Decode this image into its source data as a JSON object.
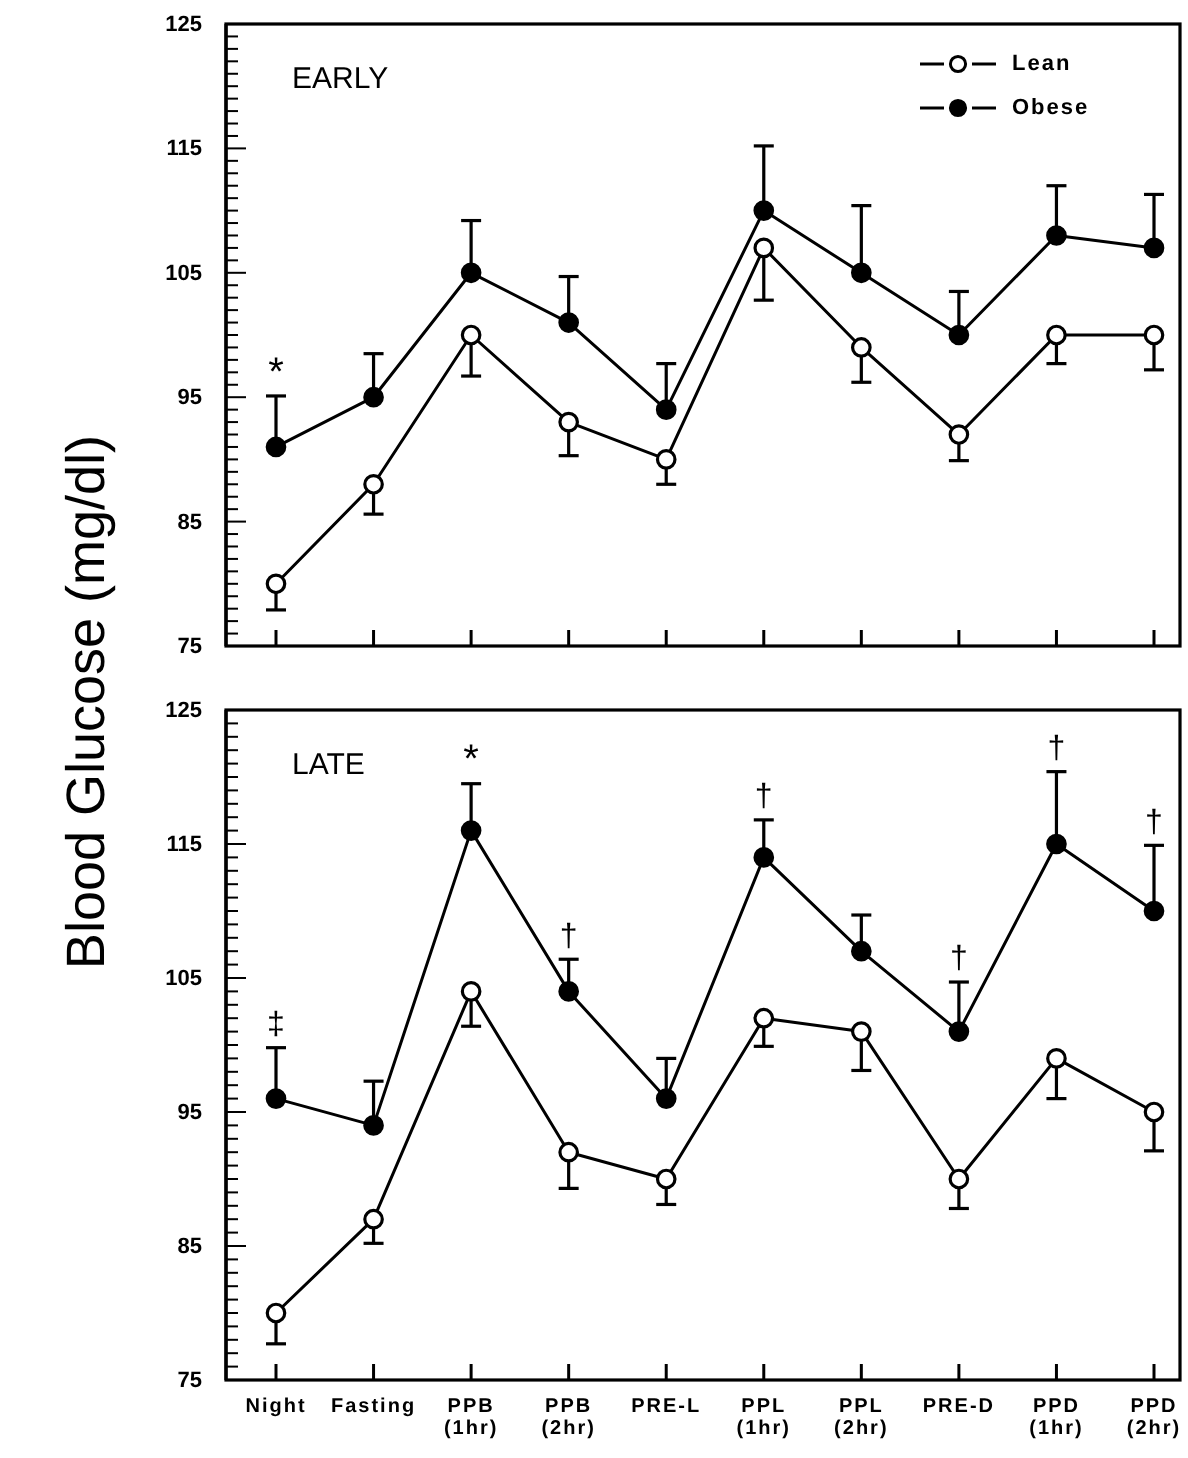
{
  "chart_data": [
    {
      "type": "line",
      "title": "EARLY",
      "ylabel": "Blood Glucose (mg/dl)",
      "categories": [
        "Night",
        "Fasting",
        "PPB (1hr)",
        "PPB (2hr)",
        "PRE-L",
        "PPL (1hr)",
        "PPL (2hr)",
        "PRE-D",
        "PPD (1hr)",
        "PPD (2hr)"
      ],
      "ylim": [
        75,
        125
      ],
      "yticks": [
        75,
        {
          "value": 76,
          "label": null
        },
        {
          "value": 77,
          "label": null
        },
        {
          "value": 78,
          "label": null
        },
        {
          "value": 79,
          "label": null
        },
        {
          "value": 80,
          "label": null
        },
        {
          "value": 81,
          "label": null
        },
        {
          "value": 82,
          "label": null
        },
        {
          "value": 83,
          "label": null
        },
        {
          "value": 84,
          "label": null
        },
        85,
        {
          "value": 86,
          "label": null
        },
        {
          "value": 87,
          "label": null
        },
        {
          "value": 88,
          "label": null
        },
        {
          "value": 89,
          "label": null
        },
        {
          "value": 90,
          "label": null
        },
        {
          "value": 91,
          "label": null
        },
        {
          "value": 92,
          "label": null
        },
        {
          "value": 93,
          "label": null
        },
        {
          "value": 94,
          "label": null
        },
        95,
        {
          "value": 96,
          "label": null
        },
        {
          "value": 97,
          "label": null
        },
        {
          "value": 98,
          "label": null
        },
        {
          "value": 99,
          "label": null
        },
        {
          "value": 100,
          "label": null
        },
        {
          "value": 101,
          "label": null
        },
        {
          "value": 102,
          "label": null
        },
        {
          "value": 103,
          "label": null
        },
        {
          "value": 104,
          "label": null
        },
        105,
        {
          "value": 106,
          "label": null
        },
        {
          "value": 107,
          "label": null
        },
        {
          "value": 108,
          "label": null
        },
        {
          "value": 109,
          "label": null
        },
        {
          "value": 110,
          "label": null
        },
        {
          "value": 111,
          "label": null
        },
        {
          "value": 112,
          "label": null
        },
        {
          "value": 113,
          "label": null
        },
        {
          "value": 114,
          "label": null
        },
        115,
        {
          "value": 116,
          "label": null
        },
        {
          "value": 117,
          "label": null
        },
        {
          "value": 118,
          "label": null
        },
        {
          "value": 119,
          "label": null
        },
        {
          "value": 120,
          "label": null
        },
        {
          "value": 121,
          "label": null
        },
        {
          "value": 122,
          "label": null
        },
        {
          "value": 123,
          "label": null
        },
        {
          "value": 124,
          "label": null
        },
        125
      ],
      "tick_labels": "y",
      "legend": "top right",
      "grid": false,
      "line_style": "solid",
      "series": [
        {
          "name": "Lean",
          "color": "#000000",
          "marker": "circle",
          "values": [
            80,
            88,
            100,
            93,
            90,
            107,
            99,
            92,
            100,
            100
          ],
          "errors": [
            [
              77.9,
              80
            ],
            [
              85.6,
              88
            ],
            [
              96.7,
              100
            ],
            [
              90.3,
              93
            ],
            [
              88,
              90
            ],
            [
              102.8,
              107
            ],
            [
              96.2,
              99
            ],
            [
              89.9,
              92
            ],
            [
              97.7,
              100
            ],
            [
              97.2,
              100
            ]
          ]
        },
        {
          "name": "Obese",
          "color": "#000000",
          "marker": "circle",
          "values": [
            91,
            95,
            105,
            101,
            94,
            110,
            105,
            100,
            108,
            107
          ],
          "errors": [
            [
              91,
              95.1
            ],
            [
              95,
              98.5
            ],
            [
              105,
              109.2
            ],
            [
              101,
              104.7
            ],
            [
              94,
              97.7
            ],
            [
              110,
              115.2
            ],
            [
              105,
              110.4
            ],
            [
              100,
              103.5
            ],
            [
              108,
              112
            ],
            [
              107,
              111.3
            ]
          ]
        }
      ],
      "annotations": [
        {
          "text": "*",
          "x": "Night",
          "y": 95.1
        }
      ]
    },
    {
      "type": "line",
      "title": "LATE",
      "categories": [
        "Night",
        "Fasting",
        "PPB (1hr)",
        "PPB (2hr)",
        "PRE-L",
        "PPL (1hr)",
        "PPL (2hr)",
        "PRE-D",
        "PPD (1hr)",
        "PPD (2hr)"
      ],
      "ylim": [
        75,
        125
      ],
      "yticks": [
        75,
        {
          "value": 76,
          "label": null
        },
        {
          "value": 77,
          "label": null
        },
        {
          "value": 78,
          "label": null
        },
        {
          "value": 79,
          "label": null
        },
        {
          "value": 80,
          "label": null
        },
        {
          "value": 81,
          "label": null
        },
        {
          "value": 82,
          "label": null
        },
        {
          "value": 83,
          "label": null
        },
        {
          "value": 84,
          "label": null
        },
        85,
        {
          "value": 86,
          "label": null
        },
        {
          "value": 87,
          "label": null
        },
        {
          "value": 88,
          "label": null
        },
        {
          "value": 89,
          "label": null
        },
        {
          "value": 90,
          "label": null
        },
        {
          "value": 91,
          "label": null
        },
        {
          "value": 92,
          "label": null
        },
        {
          "value": 93,
          "label": null
        },
        {
          "value": 94,
          "label": null
        },
        95,
        {
          "value": 96,
          "label": null
        },
        {
          "value": 97,
          "label": null
        },
        {
          "value": 98,
          "label": null
        },
        {
          "value": 99,
          "label": null
        },
        {
          "value": 100,
          "label": null
        },
        {
          "value": 101,
          "label": null
        },
        {
          "value": 102,
          "label": null
        },
        {
          "value": 103,
          "label": null
        },
        {
          "value": 104,
          "label": null
        },
        105,
        {
          "value": 106,
          "label": null
        },
        {
          "value": 107,
          "label": null
        },
        {
          "value": 108,
          "label": null
        },
        {
          "value": 109,
          "label": null
        },
        {
          "value": 110,
          "label": null
        },
        {
          "value": 111,
          "label": null
        },
        {
          "value": 112,
          "label": null
        },
        {
          "value": 113,
          "label": null
        },
        {
          "value": 114,
          "label": null
        },
        115,
        {
          "value": 116,
          "label": null
        },
        {
          "value": 117,
          "label": null
        },
        {
          "value": 118,
          "label": null
        },
        {
          "value": 119,
          "label": null
        },
        {
          "value": 120,
          "label": null
        },
        {
          "value": 121,
          "label": null
        },
        {
          "value": 122,
          "label": null
        },
        {
          "value": 123,
          "label": null
        },
        {
          "value": 124,
          "label": null
        },
        125
      ],
      "grid": false,
      "line_style": "solid",
      "series": [
        {
          "color": "#000000",
          "marker": "circle",
          "values": [
            80,
            87,
            104,
            92,
            90,
            102,
            101,
            90,
            99,
            95
          ],
          "errors": [
            [
              77.7,
              80
            ],
            [
              85.2,
              87
            ],
            [
              101.4,
              104
            ],
            [
              89.3,
              92
            ],
            [
              88.1,
              90
            ],
            [
              99.9,
              102
            ],
            [
              98.1,
              101
            ],
            [
              87.8,
              90
            ],
            [
              96,
              99
            ],
            [
              92.1,
              95
            ]
          ]
        },
        {
          "color": "#000000",
          "marker": "circle",
          "values": [
            96,
            94,
            116,
            104,
            96,
            114,
            107,
            101,
            115,
            110
          ],
          "errors": [
            [
              96,
              99.8
            ],
            [
              94,
              97.3
            ],
            [
              116,
              119.5
            ],
            [
              104,
              106.4
            ],
            [
              96,
              99
            ],
            [
              114,
              116.8
            ],
            [
              107,
              109.7
            ],
            [
              101,
              104.7
            ],
            [
              115,
              120.4
            ],
            [
              110,
              114.9
            ]
          ]
        }
      ],
      "annotations": [
        {
          "text": "‡",
          "x": "Night",
          "y": 99.8
        },
        {
          "text": "*",
          "x": "PPB (1hr)",
          "y": 119.5
        },
        {
          "text": "†",
          "x": "PPB (2hr)",
          "y": 106.4
        },
        {
          "text": "†",
          "x": "PPL (1hr)",
          "y": 116.8
        },
        {
          "text": "†",
          "x": "PRE-D",
          "y": 104.7
        },
        {
          "text": "†",
          "x": "PPD (1hr)",
          "y": 120.4
        },
        {
          "text": "†",
          "x": "PPD (2hr)",
          "y": 114.9
        }
      ]
    }
  ]
}
